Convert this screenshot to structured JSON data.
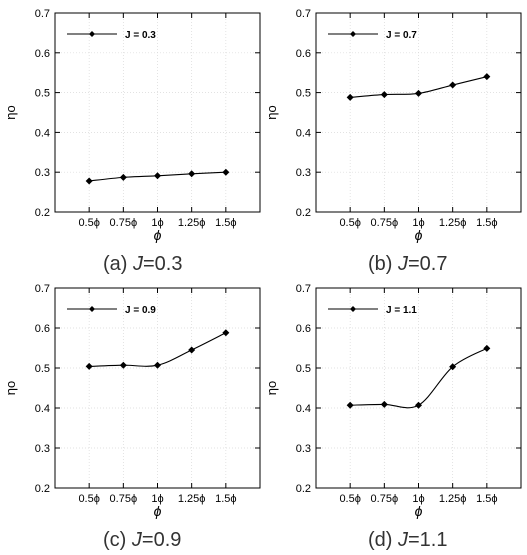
{
  "chart_data": [
    {
      "type": "line",
      "caption_label": "(a)",
      "caption_var": "J",
      "caption_value": "=0.3",
      "legend": "J = 0.3",
      "xlabel": "ϕ",
      "ylabel": "ηo",
      "categories": [
        "0.5ϕ",
        "0.75ϕ",
        "1ϕ",
        "1.25ϕ",
        "1.5ϕ"
      ],
      "x": [
        0.5,
        0.75,
        1.0,
        1.25,
        1.5
      ],
      "values": [
        0.278,
        0.287,
        0.291,
        0.296,
        0.3
      ],
      "xlim": [
        0.25,
        1.75
      ],
      "ylim": [
        0.2,
        0.7
      ],
      "yticks": [
        "0.2",
        "0.3",
        "0.4",
        "0.5",
        "0.6",
        "0.7"
      ],
      "legend_position": "top-left",
      "grid": true
    },
    {
      "type": "line",
      "caption_label": "(b)",
      "caption_var": "J",
      "caption_value": "=0.7",
      "legend": "J = 0.7",
      "xlabel": "ϕ",
      "ylabel": "ηo",
      "categories": [
        "0.5ϕ",
        "0.75ϕ",
        "1ϕ",
        "1.25ϕ",
        "1.5ϕ"
      ],
      "x": [
        0.5,
        0.75,
        1.0,
        1.25,
        1.5
      ],
      "values": [
        0.488,
        0.495,
        0.498,
        0.519,
        0.54
      ],
      "xlim": [
        0.25,
        1.75
      ],
      "ylim": [
        0.2,
        0.7
      ],
      "yticks": [
        "0.2",
        "0.3",
        "0.4",
        "0.5",
        "0.6",
        "0.7"
      ],
      "legend_position": "top-left",
      "grid": true
    },
    {
      "type": "line",
      "caption_label": "(c)",
      "caption_var": "J",
      "caption_value": "=0.9",
      "legend": "J = 0.9",
      "xlabel": "ϕ",
      "ylabel": "ηo",
      "categories": [
        "0.5ϕ",
        "0.75ϕ",
        "1ϕ",
        "1.25ϕ",
        "1.5ϕ"
      ],
      "x": [
        0.5,
        0.75,
        1.0,
        1.25,
        1.5
      ],
      "values": [
        0.504,
        0.507,
        0.507,
        0.545,
        0.588
      ],
      "xlim": [
        0.25,
        1.75
      ],
      "ylim": [
        0.2,
        0.7
      ],
      "yticks": [
        "0.2",
        "0.3",
        "0.4",
        "0.5",
        "0.6",
        "0.7"
      ],
      "legend_position": "top-left",
      "grid": true
    },
    {
      "type": "line",
      "caption_label": "(d)",
      "caption_var": "J",
      "caption_value": "=1.1",
      "legend": "J = 1.1",
      "xlabel": "ϕ",
      "ylabel": "ηo",
      "categories": [
        "0.5ϕ",
        "0.75ϕ",
        "1ϕ",
        "1.25ϕ",
        "1.5ϕ"
      ],
      "x": [
        0.5,
        0.75,
        1.0,
        1.25,
        1.5
      ],
      "values": [
        0.407,
        0.409,
        0.407,
        0.503,
        0.549
      ],
      "xlim": [
        0.25,
        1.75
      ],
      "ylim": [
        0.2,
        0.7
      ],
      "yticks": [
        "0.2",
        "0.3",
        "0.4",
        "0.5",
        "0.6",
        "0.7"
      ],
      "legend_position": "top-left",
      "grid": true
    }
  ]
}
